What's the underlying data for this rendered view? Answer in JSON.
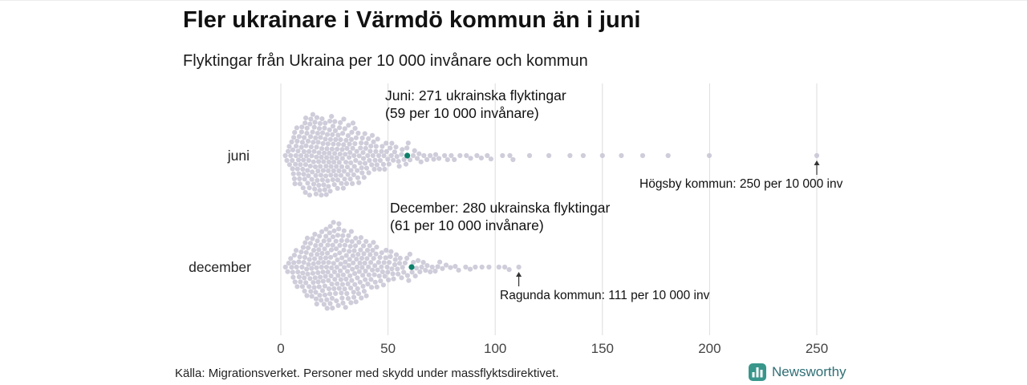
{
  "header": {
    "title": "Fler ukrainare i Värmdö kommun än i juni",
    "subtitle": "Flyktingar från Ukraina per 10 000 invånare och kommun"
  },
  "chart_data": {
    "type": "beeswarm",
    "x_ticks": [
      0,
      50,
      100,
      150,
      200,
      250
    ],
    "x_domain": [
      0,
      250
    ],
    "rows": [
      {
        "label": "juni",
        "highlight": {
          "value": 59,
          "line1": "Juni: 271 ukrainska flyktingar",
          "line2": "(59 per 10 000 invånare)"
        },
        "outlier": {
          "value": 250,
          "label": "Högsby kommun: 250 per 10 000 inv"
        },
        "distribution_bins": [
          [
            2,
            5,
            6
          ],
          [
            5,
            10,
            26
          ],
          [
            10,
            15,
            34
          ],
          [
            15,
            20,
            36
          ],
          [
            20,
            25,
            34
          ],
          [
            25,
            30,
            30
          ],
          [
            30,
            35,
            26
          ],
          [
            35,
            40,
            20
          ],
          [
            40,
            45,
            16
          ],
          [
            45,
            50,
            12
          ],
          [
            50,
            55,
            9
          ],
          [
            55,
            60,
            7
          ],
          [
            60,
            65,
            5
          ],
          [
            65,
            70,
            4
          ],
          [
            70,
            75,
            3
          ],
          [
            75,
            80,
            3
          ],
          [
            80,
            85,
            2
          ],
          [
            85,
            90,
            2
          ],
          [
            90,
            95,
            2
          ],
          [
            95,
            100,
            2
          ],
          [
            100,
            105,
            1
          ],
          [
            105,
            110,
            2
          ],
          [
            112,
            118,
            1
          ],
          [
            123,
            127,
            1
          ],
          [
            133,
            137,
            1
          ],
          [
            139,
            142,
            1
          ],
          [
            148,
            152,
            1
          ],
          [
            158,
            162,
            1
          ],
          [
            168,
            172,
            1
          ],
          [
            178,
            182,
            1
          ],
          [
            198,
            202,
            1
          ]
        ]
      },
      {
        "label": "december",
        "highlight": {
          "value": 61,
          "line1": "December: 280 ukrainska flyktingar",
          "line2": "(61 per 10 000 invånare)"
        },
        "outlier": {
          "value": 111,
          "label": "Ragunda kommun: 111 per 10 000 inv"
        },
        "distribution_bins": [
          [
            2,
            5,
            4
          ],
          [
            5,
            10,
            16
          ],
          [
            10,
            15,
            26
          ],
          [
            15,
            20,
            32
          ],
          [
            20,
            25,
            36
          ],
          [
            25,
            30,
            34
          ],
          [
            30,
            35,
            30
          ],
          [
            35,
            40,
            26
          ],
          [
            40,
            45,
            20
          ],
          [
            45,
            50,
            15
          ],
          [
            50,
            55,
            12
          ],
          [
            55,
            60,
            9
          ],
          [
            60,
            65,
            7
          ],
          [
            65,
            70,
            5
          ],
          [
            70,
            75,
            4
          ],
          [
            75,
            80,
            3
          ],
          [
            80,
            85,
            2
          ],
          [
            85,
            90,
            2
          ],
          [
            90,
            95,
            2
          ],
          [
            95,
            100,
            1
          ],
          [
            100,
            104,
            1
          ],
          [
            104,
            108,
            2
          ]
        ]
      }
    ],
    "colors": {
      "dot": "#c7c4d3",
      "highlight": "#0e7f6a",
      "gridline": "#dddddd",
      "arrow": "#333333"
    }
  },
  "footer": {
    "source": "Källa: Migrationsverket. Personer med skydd under massflyktsdirektivet."
  },
  "brand": {
    "name": "Newsworthy",
    "icon_color": "#38968b",
    "text_color": "#2f6f75"
  }
}
